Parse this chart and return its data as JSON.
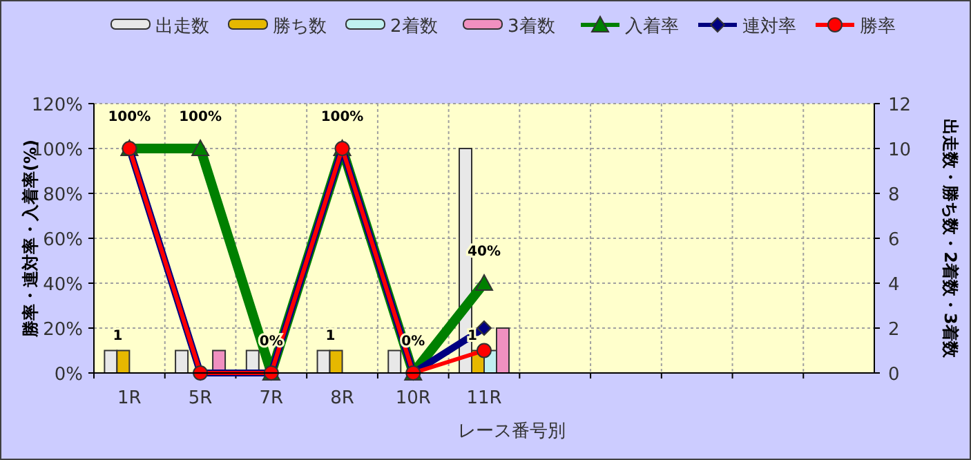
{
  "chart_data": {
    "type": "bar",
    "xlabel": "レース番号別",
    "ylabel": "勝率・連対率・入着率(%)",
    "y2label": "出走数・勝ち数・2着数・3着数",
    "categories": [
      "1R",
      "5R",
      "7R",
      "8R",
      "10R",
      "11R",
      null,
      null,
      null,
      null,
      null
    ],
    "ylim": [
      0,
      120
    ],
    "yticks": [
      {
        "value": 0,
        "label": "0%"
      },
      {
        "value": 20,
        "label": "20%"
      },
      {
        "value": 40,
        "label": "40%"
      },
      {
        "value": 60,
        "label": "60%"
      },
      {
        "value": 80,
        "label": "80%"
      },
      {
        "value": 100,
        "label": "100%"
      },
      {
        "value": 120,
        "label": "120%"
      }
    ],
    "y2lim": [
      0,
      12
    ],
    "y2ticks": [
      0,
      2,
      4,
      6,
      8,
      10,
      12
    ],
    "grid": true,
    "legend": "top",
    "series": [
      {
        "name": "出走数",
        "axis": "y2",
        "color": "#e8e8e8",
        "values": [
          1,
          1,
          1,
          1,
          1,
          10,
          null,
          null,
          null,
          null,
          null
        ]
      },
      {
        "name": "勝ち数",
        "axis": "y2",
        "color": "#e6b800",
        "values": [
          1,
          0,
          0,
          1,
          0,
          1,
          null,
          null,
          null,
          null,
          null
        ],
        "value_labels": [
          "1",
          null,
          null,
          "1",
          null,
          "1",
          null,
          null,
          null,
          null,
          null
        ]
      },
      {
        "name": "2着数",
        "axis": "y2",
        "color": "#c0f0f0",
        "values": [
          0,
          0,
          0,
          0,
          0,
          1,
          null,
          null,
          null,
          null,
          null
        ]
      },
      {
        "name": "3着数",
        "axis": "y2",
        "color": "#f090c0",
        "values": [
          0,
          1,
          0,
          0,
          0,
          2,
          null,
          null,
          null,
          null,
          null
        ]
      },
      {
        "name": "入着率",
        "type": "line",
        "color": "#008000",
        "marker": "triangle",
        "values": [
          100,
          100,
          0,
          100,
          0,
          40,
          null,
          null,
          null,
          null,
          null
        ],
        "value_labels": [
          "100%",
          "100%",
          "0%",
          "100%",
          "0%",
          "40%",
          null,
          null,
          null,
          null,
          null
        ]
      },
      {
        "name": "連対率",
        "type": "line",
        "color": "#000080",
        "marker": "diamond",
        "values": [
          100,
          0,
          0,
          100,
          0,
          20,
          null,
          null,
          null,
          null,
          null
        ]
      },
      {
        "name": "勝率",
        "type": "line",
        "color": "#ff0000",
        "marker": "circle",
        "values": [
          100,
          0,
          0,
          100,
          0,
          10,
          null,
          null,
          null,
          null,
          null
        ]
      }
    ]
  }
}
